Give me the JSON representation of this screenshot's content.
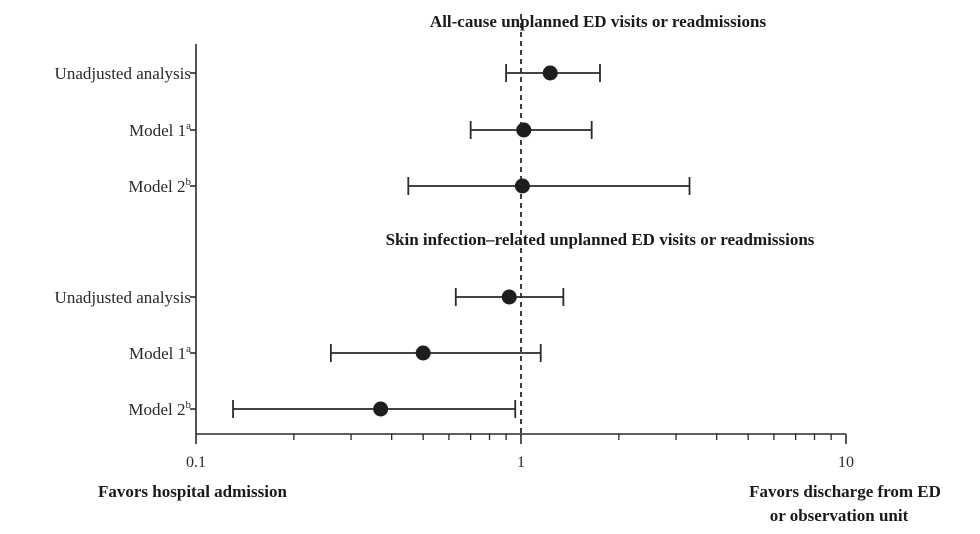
{
  "chart_data": {
    "type": "scatter",
    "title": "",
    "xlabel": "",
    "ylabel": "",
    "x_scale": "log",
    "xlim": [
      0.1,
      10
    ],
    "x_ticks": [
      "0.1",
      "1",
      "10"
    ],
    "reference_line": 1,
    "favor_left": "Favors hospital admission",
    "favor_right_lines": [
      "Favors discharge from ED",
      "or observation unit"
    ],
    "groups": [
      {
        "title": "All-cause unplanned ED visits or readmissions",
        "rows": [
          {
            "label": "Unadjusted analysis",
            "sup": "",
            "estimate": 1.23,
            "lower": 0.9,
            "upper": 1.75
          },
          {
            "label": "Model 1",
            "sup": "a",
            "estimate": 1.02,
            "lower": 0.7,
            "upper": 1.65
          },
          {
            "label": "Model 2",
            "sup": "b",
            "estimate": 1.01,
            "lower": 0.45,
            "upper": 3.3
          }
        ]
      },
      {
        "title": "Skin infection–related unplanned ED visits or readmissions",
        "rows": [
          {
            "label": "Unadjusted analysis",
            "sup": "",
            "estimate": 0.92,
            "lower": 0.63,
            "upper": 1.35
          },
          {
            "label": "Model 1",
            "sup": "a",
            "estimate": 0.5,
            "lower": 0.26,
            "upper": 1.15
          },
          {
            "label": "Model 2",
            "sup": "b",
            "estimate": 0.37,
            "lower": 0.13,
            "upper": 0.96
          }
        ]
      }
    ],
    "colors": {
      "marker": "#1e1e1e",
      "line": "#2a2a2a",
      "reference": "#2a2a2a"
    }
  }
}
